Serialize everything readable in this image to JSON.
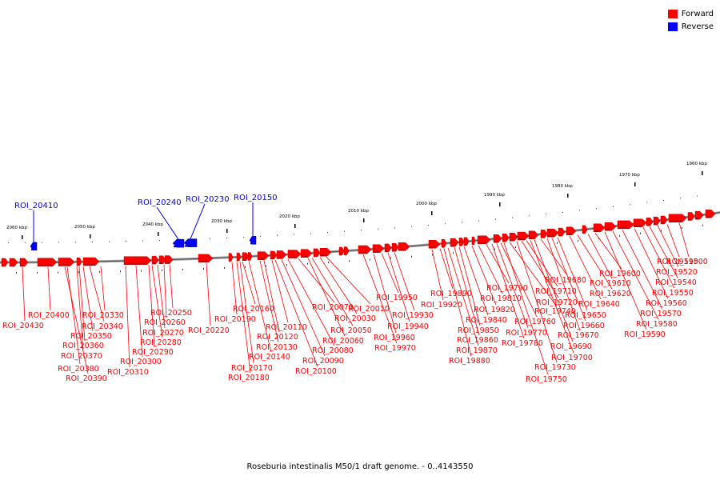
{
  "legend": [
    {
      "label": "Forward",
      "color": "#ff0000"
    },
    {
      "label": "Reverse",
      "color": "#0000ff"
    }
  ],
  "colors": {
    "forward_gene": "#ff0000",
    "reverse_gene": "#0000ff",
    "backbone": "#888888",
    "label_line": "#ff0000"
  },
  "scale": {
    "unit": "kbp",
    "ticks": [
      "2060 kbp",
      "2050 kbp",
      "2040 kbp",
      "2030 kbp",
      "2020 kbp",
      "2010 kbp",
      "2000 kbp",
      "1990 kbp",
      "1980 kbp",
      "1970 kbp",
      "1960 kbp"
    ]
  },
  "reverse_genes": [
    "ROI_20410",
    "ROI_20240",
    "ROI_20230",
    "ROI_20150"
  ],
  "forward_genes": [
    "ROI_20430",
    "ROI_20400",
    "ROI_20390",
    "ROI_20380",
    "ROI_20370",
    "ROI_20360",
    "ROI_20350",
    "ROI_20340",
    "ROI_20330",
    "ROI_20310",
    "ROI_20300",
    "ROI_20290",
    "ROI_20280",
    "ROI_20270",
    "ROI_20260",
    "ROI_20250",
    "ROI_20220",
    "ROI_20190",
    "ROI_20180",
    "ROI_20170",
    "ROI_20160",
    "ROI_20140",
    "ROI_20130",
    "ROI_20120",
    "ROI_20110",
    "ROI_20100",
    "ROI_20090",
    "ROI_20080",
    "ROI_20070",
    "ROI_20060",
    "ROI_20050",
    "ROI_20030",
    "ROI_20010",
    "ROI_19970",
    "ROI_19960",
    "ROI_19950",
    "ROI_19940",
    "ROI_19930",
    "ROI_19920",
    "ROI_19890",
    "ROI_19880",
    "ROI_19870",
    "ROI_19860",
    "ROI_19850",
    "ROI_19840",
    "ROI_19820",
    "ROI_19810",
    "ROI_19790",
    "ROI_19780",
    "ROI_19770",
    "ROI_19760",
    "ROI_19750",
    "ROI_19740",
    "ROI_19730",
    "ROI_19720",
    "ROI_19710",
    "ROI_19700",
    "ROI_19690",
    "ROI_19680",
    "ROI_19670",
    "ROI_19660",
    "ROI_19650",
    "ROI_19640",
    "ROI_19620",
    "ROI_19610",
    "ROI_19600",
    "ROI_19590",
    "ROI_19580",
    "ROI_19570",
    "ROI_19560",
    "ROI_19550",
    "ROI_19540",
    "ROI_19520",
    "ROI_19510",
    "ROI_19500"
  ],
  "footer": "Roseburia intestinalis M50/1 draft genome. - 0..4143550"
}
